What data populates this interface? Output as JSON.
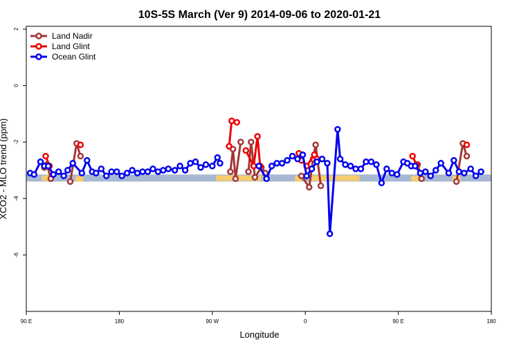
{
  "chart_data": {
    "type": "line",
    "title": "10S-5S March (Ver 9)   2014-09-06 to 2020-01-21",
    "xlabel": "Longitude",
    "ylabel": "XCO2 - MLO trend (ppm)",
    "xlim": [
      90,
      450
    ],
    "ylim": [
      -8,
      2.1
    ],
    "x_ticks": [
      {
        "value": 90,
        "label": "90 E"
      },
      {
        "value": 162,
        "label": "180"
      },
      {
        "value": 234,
        "label": "90 W"
      },
      {
        "value": 306,
        "label": "0"
      },
      {
        "value": 378,
        "label": "90 E"
      },
      {
        "value": 450,
        "label": "180"
      }
    ],
    "y_ticks": [
      {
        "value": 2,
        "label": "2"
      },
      {
        "value": 0,
        "label": "0"
      },
      {
        "value": -2,
        "label": "-2"
      },
      {
        "value": -4,
        "label": "-4"
      },
      {
        "value": -6,
        "label": "-6"
      }
    ],
    "band": {
      "ymin": -3.4,
      "ymax": -3.15,
      "color": "#a8b8d2"
    },
    "land_color": "#f5cd6e",
    "land_segments": [
      {
        "x0": 102,
        "x1": 111,
        "y": -3.28
      },
      {
        "x0": 128,
        "x1": 134,
        "y": -3.3
      },
      {
        "x0": 237,
        "x1": 272,
        "y": -3.28
      },
      {
        "x0": 298,
        "x1": 303,
        "y": -3.3
      },
      {
        "x0": 310,
        "x1": 348,
        "y": -3.28
      },
      {
        "x0": 388,
        "x1": 396,
        "y": -3.3
      },
      {
        "x0": 420,
        "x1": 426,
        "y": -3.3
      }
    ],
    "legend_position": "top-left",
    "series": [
      {
        "name": "Land Nadir",
        "color": "#a33636",
        "segments": [
          [
            [
              104,
              -2.9
            ],
            [
              106,
              -2.8
            ],
            [
              109,
              -3.3
            ]
          ],
          [
            [
              124,
              -3.4
            ],
            [
              129,
              -2.05
            ],
            [
              132,
              -2.5
            ]
          ],
          [
            [
              248,
              -3.05
            ],
            [
              250,
              -2.25
            ],
            [
              252,
              -3.3
            ],
            [
              256,
              -2.0
            ]
          ],
          [
            [
              262,
              -3.05
            ],
            [
              264,
              -2.0
            ],
            [
              267,
              -3.25
            ],
            [
              272,
              -2.9
            ],
            [
              275,
              -3.1
            ]
          ],
          [
            [
              303,
              -3.2
            ],
            [
              309,
              -3.6
            ],
            [
              312,
              -2.6
            ],
            [
              314,
              -2.1
            ],
            [
              318,
              -3.55
            ]
          ],
          [
            [
              393,
              -2.8
            ],
            [
              396,
              -3.3
            ]
          ],
          [
            [
              423,
              -3.4
            ],
            [
              428,
              -2.05
            ],
            [
              431,
              -2.5
            ]
          ]
        ]
      },
      {
        "name": "Land Glint",
        "color": "#ee0000",
        "segments": [
          [
            [
              105,
              -2.5
            ],
            [
              108,
              -2.85
            ]
          ],
          [
            [
              132,
              -2.1
            ]
          ],
          [
            [
              247,
              -2.15
            ],
            [
              249,
              -1.25
            ],
            [
              253,
              -1.3
            ]
          ],
          [
            [
              260,
              -2.3
            ],
            [
              266,
              -2.85
            ],
            [
              269,
              -1.8
            ],
            [
              271,
              -2.85
            ]
          ],
          [
            [
              301,
              -2.4
            ],
            [
              303,
              -2.65
            ],
            [
              307,
              -2.85
            ],
            [
              313,
              -2.45
            ],
            [
              315,
              -2.6
            ]
          ],
          [
            [
              389,
              -2.5
            ],
            [
              392,
              -2.8
            ]
          ],
          [
            [
              431,
              -2.1
            ]
          ]
        ]
      },
      {
        "name": "Ocean Glint",
        "color": "#0000ee",
        "segments": [
          [
            [
              93,
              -3.1
            ],
            [
              96,
              -3.15
            ],
            [
              101,
              -2.7
            ],
            [
              104,
              -2.85
            ],
            [
              107,
              -2.85
            ],
            [
              111,
              -3.15
            ],
            [
              115,
              -3.05
            ],
            [
              119,
              -3.2
            ],
            [
              122,
              -3.0
            ],
            [
              126,
              -2.75
            ],
            [
              133,
              -3.1
            ],
            [
              137,
              -2.65
            ],
            [
              141,
              -3.05
            ],
            [
              144,
              -3.1
            ],
            [
              148,
              -2.95
            ],
            [
              152,
              -3.2
            ],
            [
              156,
              -3.05
            ],
            [
              160,
              -3.05
            ],
            [
              164,
              -3.2
            ],
            [
              168,
              -3.1
            ],
            [
              172,
              -3.0
            ],
            [
              176,
              -3.1
            ],
            [
              180,
              -3.05
            ],
            [
              184,
              -3.05
            ],
            [
              188,
              -2.95
            ],
            [
              192,
              -3.05
            ],
            [
              196,
              -3.0
            ],
            [
              200,
              -2.95
            ],
            [
              205,
              -3.0
            ],
            [
              209,
              -2.85
            ],
            [
              213,
              -3.0
            ],
            [
              217,
              -2.75
            ],
            [
              221,
              -2.7
            ],
            [
              225,
              -2.9
            ],
            [
              229,
              -2.8
            ],
            [
              234,
              -2.85
            ],
            [
              238,
              -2.55
            ],
            [
              240,
              -2.75
            ]
          ],
          [
            [
              270,
              -2.85
            ],
            [
              276,
              -3.3
            ],
            [
              280,
              -2.85
            ],
            [
              284,
              -2.75
            ],
            [
              288,
              -2.75
            ],
            [
              292,
              -2.65
            ],
            [
              296,
              -2.5
            ],
            [
              300,
              -2.6
            ],
            [
              304,
              -2.45
            ],
            [
              307,
              -3.2
            ],
            [
              311,
              -2.95
            ],
            [
              315,
              -2.7
            ],
            [
              319,
              -2.6
            ],
            [
              323,
              -2.75
            ],
            [
              325,
              -5.25
            ],
            [
              331,
              -1.55
            ],
            [
              333,
              -2.6
            ],
            [
              337,
              -2.8
            ],
            [
              341,
              -2.85
            ],
            [
              345,
              -2.95
            ],
            [
              349,
              -2.95
            ],
            [
              353,
              -2.7
            ],
            [
              357,
              -2.7
            ],
            [
              361,
              -2.8
            ],
            [
              365,
              -3.45
            ],
            [
              369,
              -2.95
            ],
            [
              373,
              -3.1
            ],
            [
              377,
              -3.15
            ],
            [
              382,
              -2.7
            ],
            [
              385,
              -2.75
            ],
            [
              388,
              -2.85
            ],
            [
              391,
              -2.85
            ],
            [
              395,
              -3.1
            ],
            [
              399,
              -3.05
            ],
            [
              403,
              -3.2
            ],
            [
              407,
              -3.0
            ],
            [
              411,
              -2.75
            ],
            [
              417,
              -3.1
            ],
            [
              421,
              -2.65
            ],
            [
              425,
              -3.05
            ],
            [
              429,
              -3.1
            ],
            [
              434,
              -2.95
            ],
            [
              438,
              -3.2
            ],
            [
              442,
              -3.05
            ]
          ]
        ]
      }
    ]
  }
}
